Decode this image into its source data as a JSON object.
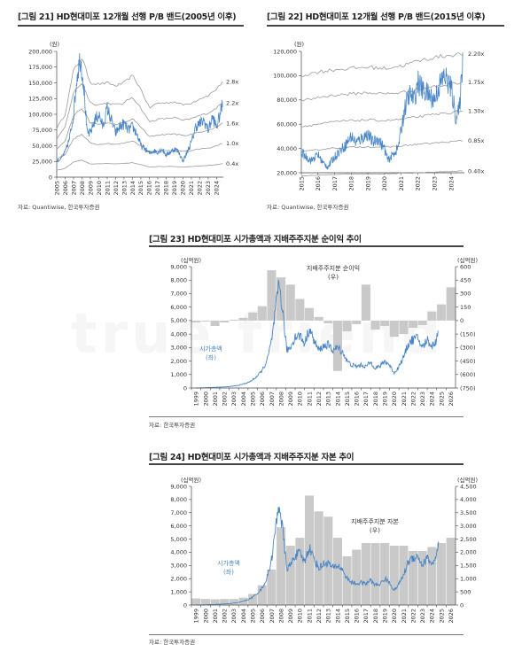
{
  "watermark": "true friend",
  "figures": {
    "fig21": {
      "title": "[그림 21] HD현대미포 12개월 선행 P/B 밴드(2005년 이후)",
      "source": "자료: Quantiwise, 한국투자증권"
    },
    "fig22": {
      "title": "[그림 22] HD현대미포 12개월 선행 P/B 밴드(2015년 이후)",
      "source": "자료: Quantiwise, 한국투자증권"
    },
    "fig23": {
      "title": "[그림 23] HD현대미포 시가총액과 지배주주지분 순이익 추이",
      "source": "자료: 한국투자증권"
    },
    "fig24": {
      "title": "[그림 24] HD현대미포 시가총액과 지배주주지분 자본 추이",
      "source": "자료: 한국투자증권"
    }
  },
  "chart_data": [
    {
      "id": "fig21",
      "type": "line",
      "title": "[그림 21] HD현대미포 12개월 선행 P/B 밴드(2005년 이후)",
      "ylabel": "(원)",
      "ylim": [
        0,
        200000
      ],
      "yticks": [
        0,
        25000,
        50000,
        75000,
        100000,
        125000,
        150000,
        175000,
        200000
      ],
      "ytick_labels": [
        "0",
        "25,000",
        "50,000",
        "75,000",
        "100,000",
        "125,000",
        "150,000",
        "175,000",
        "200,000"
      ],
      "xlim": [
        2005,
        2024.8
      ],
      "xticks": [
        "2005",
        "2006",
        "2007",
        "2008",
        "2009",
        "2010",
        "2011",
        "2012",
        "2013",
        "2014",
        "2015",
        "2016",
        "2017",
        "2018",
        "2019",
        "2020",
        "2021",
        "2022",
        "2023",
        "2024"
      ],
      "series": [
        {
          "name": "2.8x",
          "type": "band",
          "x": [
            2005,
            2006,
            2007,
            2008,
            2009,
            2010,
            2011,
            2012,
            2013,
            2014,
            2015,
            2016,
            2017,
            2018,
            2019,
            2020,
            2021,
            2022,
            2023,
            2024,
            2024.7
          ],
          "values": [
            78000,
            100000,
            170000,
            190000,
            150000,
            148000,
            150000,
            145000,
            150000,
            162000,
            140000,
            110000,
            118000,
            118000,
            120000,
            115000,
            118000,
            125000,
            130000,
            140000,
            152000
          ]
        },
        {
          "name": "2.2x",
          "type": "band",
          "x": [
            2005,
            2006,
            2007,
            2008,
            2009,
            2010,
            2011,
            2012,
            2013,
            2014,
            2015,
            2016,
            2017,
            2018,
            2019,
            2020,
            2021,
            2022,
            2023,
            2024,
            2024.7
          ],
          "values": [
            60000,
            80000,
            135000,
            150000,
            118000,
            115000,
            118000,
            115000,
            118000,
            128000,
            110000,
            88000,
            92000,
            93000,
            95000,
            90000,
            93000,
            98000,
            102000,
            110000,
            118000
          ]
        },
        {
          "name": "1.6x",
          "type": "band",
          "x": [
            2005,
            2006,
            2007,
            2008,
            2009,
            2010,
            2011,
            2012,
            2013,
            2014,
            2015,
            2016,
            2017,
            2018,
            2019,
            2020,
            2021,
            2022,
            2023,
            2024,
            2024.7
          ],
          "values": [
            45000,
            58000,
            98000,
            110000,
            86000,
            84000,
            86000,
            84000,
            86000,
            93000,
            80000,
            64000,
            67000,
            68000,
            69000,
            66000,
            68000,
            72000,
            74000,
            80000,
            86000
          ]
        },
        {
          "name": "1.0x",
          "type": "band",
          "x": [
            2005,
            2006,
            2007,
            2008,
            2009,
            2010,
            2011,
            2012,
            2013,
            2014,
            2015,
            2016,
            2017,
            2018,
            2019,
            2020,
            2021,
            2022,
            2023,
            2024,
            2024.7
          ],
          "values": [
            28000,
            36000,
            61000,
            68000,
            54000,
            52000,
            54000,
            52000,
            54000,
            58000,
            50000,
            40000,
            42000,
            42000,
            43000,
            41000,
            42000,
            45000,
            46000,
            50000,
            54000
          ]
        },
        {
          "name": "0.4x",
          "type": "band",
          "x": [
            2005,
            2006,
            2007,
            2008,
            2009,
            2010,
            2011,
            2012,
            2013,
            2014,
            2015,
            2016,
            2017,
            2018,
            2019,
            2020,
            2021,
            2022,
            2023,
            2024,
            2024.7
          ],
          "values": [
            11000,
            14000,
            24000,
            27000,
            21000,
            21000,
            22000,
            21000,
            22000,
            23000,
            20000,
            16000,
            17000,
            17000,
            17000,
            16000,
            17000,
            18000,
            18500,
            20000,
            21500
          ]
        },
        {
          "name": "",
          "type": "price",
          "x": [
            2005,
            2005.5,
            2006,
            2006.5,
            2007,
            2007.4,
            2007.8,
            2008.2,
            2008.6,
            2009,
            2009.5,
            2010,
            2010.5,
            2011,
            2011.5,
            2012,
            2012.5,
            2013,
            2013.5,
            2014,
            2014.5,
            2015,
            2015.5,
            2016,
            2016.5,
            2017,
            2017.5,
            2018,
            2018.5,
            2019,
            2019.5,
            2020,
            2020.5,
            2021,
            2021.5,
            2022,
            2022.5,
            2023,
            2023.5,
            2024,
            2024.4,
            2024.7
          ],
          "values": [
            25000,
            30000,
            40000,
            60000,
            100000,
            160000,
            190000,
            150000,
            70000,
            70000,
            90000,
            100000,
            80000,
            110000,
            90000,
            70000,
            80000,
            85000,
            75000,
            80000,
            70000,
            50000,
            45000,
            38000,
            42000,
            40000,
            45000,
            35000,
            40000,
            45000,
            40000,
            25000,
            40000,
            55000,
            80000,
            85000,
            90000,
            75000,
            95000,
            80000,
            100000,
            115000
          ]
        }
      ]
    },
    {
      "id": "fig22",
      "type": "line",
      "title": "[그림 22] HD현대미포 12개월 선행 P/B 밴드(2015년 이후)",
      "ylabel": "(원)",
      "ylim": [
        20000,
        120000
      ],
      "yticks": [
        20000,
        40000,
        60000,
        80000,
        100000,
        120000
      ],
      "ytick_labels": [
        "20,000",
        "40,000",
        "60,000",
        "80,000",
        "100,000",
        "120,000"
      ],
      "xlim": [
        2015,
        2024.8
      ],
      "xticks": [
        "2015",
        "2016",
        "2017",
        "2018",
        "2019",
        "2020",
        "2021",
        "2022",
        "2023",
        "2024"
      ],
      "series": [
        {
          "name": "2.20x",
          "type": "band",
          "x": [
            2015,
            2016,
            2017,
            2018,
            2019,
            2020,
            2021,
            2022,
            2023,
            2024,
            2024.7
          ],
          "values": [
            100000,
            103000,
            105000,
            106000,
            107000,
            106000,
            108000,
            112000,
            115000,
            117000,
            118000
          ]
        },
        {
          "name": "1.75x",
          "type": "band",
          "x": [
            2015,
            2016,
            2017,
            2018,
            2019,
            2020,
            2021,
            2022,
            2023,
            2024,
            2024.7
          ],
          "values": [
            79000,
            82000,
            84000,
            85000,
            86000,
            85000,
            86000,
            89000,
            91000,
            93000,
            95000
          ]
        },
        {
          "name": "1.30x",
          "type": "band",
          "x": [
            2015,
            2016,
            2017,
            2018,
            2019,
            2020,
            2021,
            2022,
            2023,
            2024,
            2024.7
          ],
          "values": [
            58000,
            60000,
            62000,
            63000,
            63500,
            63000,
            64000,
            66000,
            68000,
            69500,
            71000
          ]
        },
        {
          "name": "0.85x",
          "type": "band",
          "x": [
            2015,
            2016,
            2017,
            2018,
            2019,
            2020,
            2021,
            2022,
            2023,
            2024,
            2024.7
          ],
          "values": [
            37000,
            39000,
            40500,
            41000,
            41500,
            41000,
            42000,
            43500,
            44500,
            45500,
            46500
          ]
        },
        {
          "name": "0.40x",
          "type": "band",
          "x": [
            2015,
            2016,
            2017,
            2018,
            2019,
            2020,
            2021,
            2022,
            2023,
            2024,
            2024.7
          ],
          "values": [
            17500,
            18000,
            18500,
            19000,
            19000,
            19000,
            19500,
            20000,
            20500,
            21000,
            21500
          ]
        },
        {
          "name": "",
          "type": "price",
          "x": [
            2015,
            2015.3,
            2015.6,
            2016,
            2016.3,
            2016.6,
            2017,
            2017.3,
            2017.6,
            2018,
            2018.3,
            2018.6,
            2019,
            2019.3,
            2019.6,
            2020,
            2020.2,
            2020.5,
            2020.8,
            2021,
            2021.2,
            2021.5,
            2021.8,
            2022,
            2022.3,
            2022.6,
            2023,
            2023.3,
            2023.6,
            2024,
            2024.3,
            2024.5,
            2024.7
          ],
          "values": [
            37000,
            33000,
            30000,
            35000,
            28000,
            25000,
            33000,
            38000,
            42000,
            50000,
            45000,
            48000,
            52000,
            45000,
            48000,
            40000,
            30000,
            35000,
            40000,
            55000,
            72000,
            85000,
            80000,
            95000,
            88000,
            85000,
            80000,
            92000,
            100000,
            90000,
            65000,
            72000,
            115000
          ]
        }
      ]
    },
    {
      "id": "fig23",
      "type": "bar+line",
      "title": "[그림 23] HD현대미포 시가총액과 지배주주지분 순이익 추이",
      "y_left_unit": "(십억원)",
      "y_left_lim": [
        0,
        9000
      ],
      "y_left_ticks": [
        "0",
        "1,000",
        "2,000",
        "3,000",
        "4,000",
        "5,000",
        "6,000",
        "7,000",
        "8,000",
        "9,000"
      ],
      "y_right_unit": "(십억원)",
      "y_right_lim": [
        -750,
        600
      ],
      "y_right_ticks": [
        "(750)",
        "(600)",
        "(450)",
        "(300)",
        "(150)",
        "0",
        "150",
        "300",
        "450",
        "600"
      ],
      "categories": [
        "1999",
        "2000",
        "2001",
        "2002",
        "2003",
        "2004",
        "2005",
        "2006",
        "2007",
        "2008",
        "2009",
        "2010",
        "2011",
        "2012",
        "2013",
        "2014",
        "2015",
        "2016",
        "2017",
        "2018",
        "2019",
        "2020",
        "2021",
        "2022",
        "2023",
        "2024",
        "2025",
        "2026"
      ],
      "bar_series": {
        "name": "지배주주지분 순이익\n(우)",
        "values": [
          -20,
          -10,
          -60,
          -20,
          10,
          30,
          90,
          160,
          560,
          480,
          400,
          240,
          140,
          40,
          -30,
          -560,
          -120,
          -40,
          400,
          -100,
          -60,
          -180,
          -150,
          -80,
          -50,
          100,
          180,
          370
        ]
      },
      "line_series": {
        "name": "시가총액\n(좌)",
        "x": [
          1999,
          2000,
          2001,
          2002,
          2002.5,
          2003,
          2003.5,
          2004,
          2004.5,
          2005,
          2005.5,
          2006,
          2006.5,
          2007,
          2007.4,
          2007.8,
          2008.2,
          2008.6,
          2009,
          2009.5,
          2010,
          2010.5,
          2011,
          2011.5,
          2012,
          2012.5,
          2013,
          2013.5,
          2014,
          2014.5,
          2015,
          2015.5,
          2016,
          2016.5,
          2017,
          2017.5,
          2018,
          2018.5,
          2019,
          2019.5,
          2020,
          2020.5,
          2021,
          2021.5,
          2022,
          2022.5,
          2023,
          2023.5,
          2024,
          2024.4,
          2024.7
        ],
        "values": [
          0,
          20,
          50,
          80,
          100,
          150,
          200,
          300,
          400,
          600,
          900,
          1300,
          2000,
          3500,
          5600,
          7800,
          5500,
          2800,
          3000,
          3800,
          3900,
          3300,
          4400,
          3500,
          2800,
          3100,
          3200,
          2800,
          3000,
          2700,
          2000,
          1700,
          1600,
          1700,
          1600,
          1900,
          1500,
          1600,
          2000,
          1700,
          1100,
          1600,
          2300,
          3300,
          3600,
          3700,
          3000,
          3600,
          3100,
          3400,
          4500
        ]
      }
    },
    {
      "id": "fig24",
      "type": "bar+line",
      "title": "[그림 24] HD현대미포 시가총액과 지배주주지분 자본 추이",
      "y_left_unit": "(십억원)",
      "y_left_lim": [
        0,
        9000
      ],
      "y_left_ticks": [
        "0",
        "1,000",
        "2,000",
        "3,000",
        "4,000",
        "5,000",
        "6,000",
        "7,000",
        "8,000",
        "9,000"
      ],
      "y_right_unit": "(십억원)",
      "y_right_lim": [
        0,
        4500
      ],
      "y_right_ticks": [
        "0",
        "500",
        "1,000",
        "1,500",
        "2,000",
        "2,500",
        "3,000",
        "3,500",
        "4,000",
        "4,500"
      ],
      "categories": [
        "1999",
        "2000",
        "2001",
        "2002",
        "2003",
        "2004",
        "2005",
        "2006",
        "2007",
        "2008",
        "2009",
        "2010",
        "2011",
        "2012",
        "2013",
        "2014",
        "2015",
        "2016",
        "2017",
        "2018",
        "2019",
        "2020",
        "2021",
        "2022",
        "2023",
        "2024",
        "2025",
        "2026"
      ],
      "bar_series": {
        "name": "지배주주지분 자본\n(우)",
        "values": [
          250,
          230,
          220,
          230,
          230,
          280,
          420,
          750,
          1350,
          2950,
          2250,
          2550,
          4150,
          3550,
          3350,
          2550,
          1850,
          2100,
          2350,
          2350,
          2350,
          2250,
          2250,
          2050,
          2050,
          2200,
          2350,
          2550
        ]
      },
      "line_series": {
        "name": "시가총액\n(좌)",
        "x": [
          1999,
          2000,
          2001,
          2002,
          2002.5,
          2003,
          2003.5,
          2004,
          2004.5,
          2005,
          2005.5,
          2006,
          2006.5,
          2007,
          2007.4,
          2007.8,
          2008.2,
          2008.6,
          2009,
          2009.5,
          2010,
          2010.5,
          2011,
          2011.5,
          2012,
          2012.5,
          2013,
          2013.5,
          2014,
          2014.5,
          2015,
          2015.5,
          2016,
          2016.5,
          2017,
          2017.5,
          2018,
          2018.5,
          2019,
          2019.5,
          2020,
          2020.5,
          2021,
          2021.5,
          2022,
          2022.5,
          2023,
          2023.5,
          2024,
          2024.4,
          2024.7
        ],
        "values": [
          0,
          20,
          50,
          80,
          100,
          150,
          200,
          300,
          400,
          600,
          900,
          1300,
          2000,
          3500,
          5600,
          7800,
          5500,
          2800,
          3000,
          3800,
          3900,
          3300,
          4400,
          3500,
          2800,
          3100,
          3200,
          2800,
          3000,
          2700,
          2000,
          1700,
          1600,
          1700,
          1600,
          1900,
          1500,
          1600,
          2000,
          1700,
          1100,
          1600,
          2300,
          3300,
          3600,
          3700,
          3000,
          3600,
          3100,
          3400,
          4500
        ]
      }
    }
  ]
}
